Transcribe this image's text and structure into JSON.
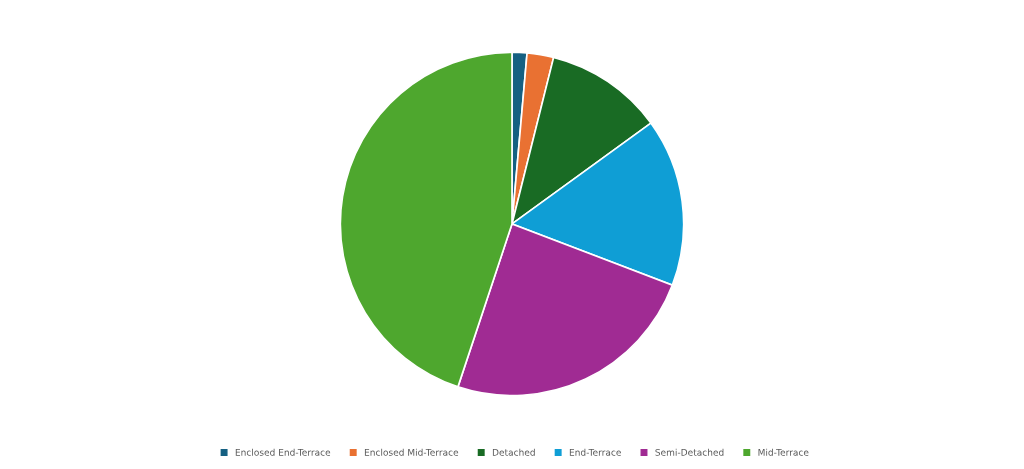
{
  "chart_data": {
    "type": "pie",
    "categories": [
      "Enclosed End-Terrace",
      "Enclosed Mid-Terrace",
      "Detached",
      "End-Terrace",
      "Semi-Detached",
      "Mid-Terrace"
    ],
    "values": [
      1.4,
      2.5,
      11.1,
      15.8,
      24.3,
      44.9
    ],
    "colors": [
      "#156082",
      "#e97132",
      "#196b24",
      "#0f9ed5",
      "#a02b93",
      "#4ea72e"
    ],
    "legend": "bottom"
  }
}
